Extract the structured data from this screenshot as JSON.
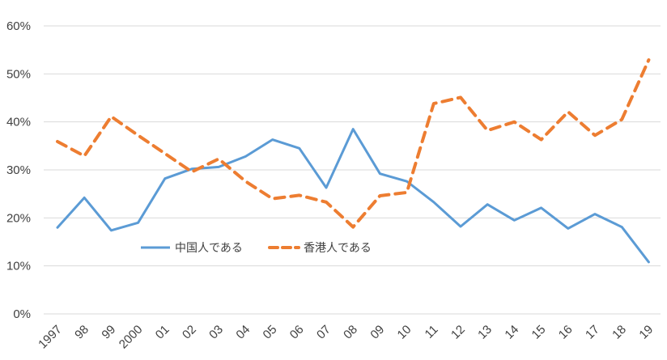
{
  "chart_data": {
    "type": "line",
    "categories": [
      "1997",
      "98",
      "99",
      "2000",
      "01",
      "02",
      "03",
      "04",
      "05",
      "06",
      "07",
      "08",
      "09",
      "10",
      "11",
      "12",
      "13",
      "14",
      "15",
      "16",
      "17",
      "18",
      "19"
    ],
    "series": [
      {
        "name": "中国人である",
        "color": "#5b9bd5",
        "style": "solid",
        "values": [
          18.0,
          24.2,
          17.4,
          19.0,
          28.2,
          30.2,
          30.6,
          32.8,
          36.3,
          34.5,
          26.3,
          38.5,
          29.2,
          27.6,
          23.3,
          18.2,
          22.8,
          19.5,
          22.1,
          17.8,
          20.8,
          18.1,
          10.8
        ]
      },
      {
        "name": "香港人である",
        "color": "#ed7d31",
        "style": "dashed",
        "values": [
          35.9,
          32.9,
          41.1,
          37.2,
          33.4,
          29.6,
          32.3,
          27.6,
          24.0,
          24.7,
          23.3,
          18.1,
          24.6,
          25.3,
          43.8,
          45.1,
          38.2,
          40.0,
          36.3,
          42.1,
          37.2,
          40.5,
          52.9
        ]
      }
    ],
    "y_ticks": [
      "0%",
      "10%",
      "20%",
      "30%",
      "40%",
      "50%",
      "60%"
    ],
    "ylim": [
      0,
      60
    ],
    "grid": true,
    "legend_placement": "inside-left-bottom"
  }
}
